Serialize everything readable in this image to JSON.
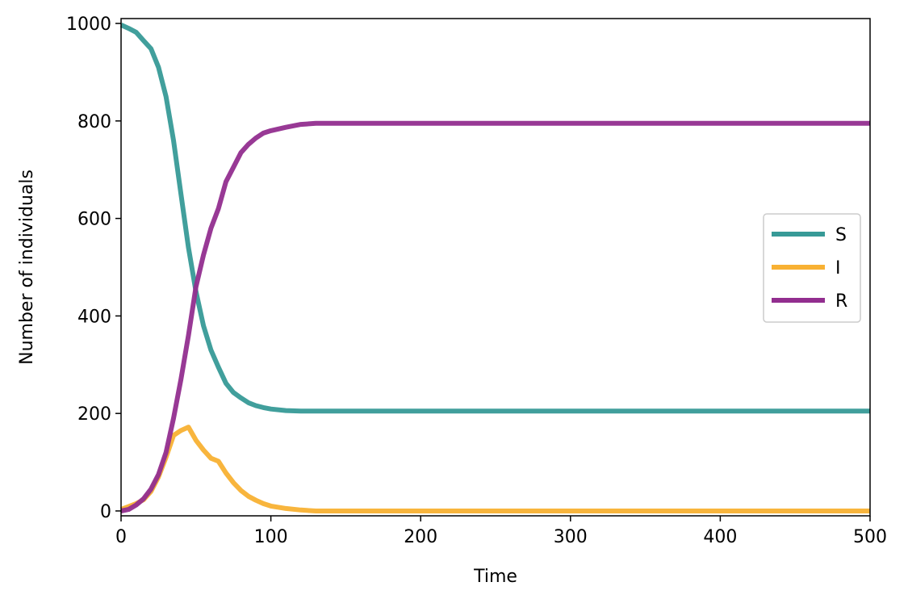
{
  "chart_data": {
    "type": "line",
    "title": "",
    "xlabel": "Time",
    "ylabel": "Number of individuals",
    "xlim": [
      0,
      500
    ],
    "ylim": [
      -10,
      1010
    ],
    "xticks": [
      "0",
      "100",
      "200",
      "300",
      "400",
      "500"
    ],
    "yticks": [
      "0",
      "200",
      "400",
      "600",
      "800",
      "1000"
    ],
    "grid": false,
    "legend_position": "center-right",
    "series": [
      {
        "name": "S",
        "color": "#379a97",
        "points": [
          [
            0,
            997
          ],
          [
            5,
            990
          ],
          [
            10,
            982
          ],
          [
            15,
            965
          ],
          [
            20,
            948
          ],
          [
            25,
            910
          ],
          [
            30,
            850
          ],
          [
            35,
            760
          ],
          [
            40,
            650
          ],
          [
            45,
            540
          ],
          [
            50,
            450
          ],
          [
            55,
            380
          ],
          [
            60,
            330
          ],
          [
            65,
            295
          ],
          [
            70,
            262
          ],
          [
            75,
            243
          ],
          [
            80,
            232
          ],
          [
            85,
            222
          ],
          [
            90,
            216
          ],
          [
            95,
            212
          ],
          [
            100,
            209
          ],
          [
            110,
            206
          ],
          [
            120,
            205
          ],
          [
            500,
            205
          ]
        ]
      },
      {
        "name": "I",
        "color": "#f8b133",
        "points": [
          [
            0,
            3
          ],
          [
            5,
            9
          ],
          [
            10,
            15
          ],
          [
            15,
            23
          ],
          [
            20,
            40
          ],
          [
            25,
            70
          ],
          [
            30,
            110
          ],
          [
            35,
            155
          ],
          [
            40,
            165
          ],
          [
            45,
            172
          ],
          [
            50,
            145
          ],
          [
            55,
            125
          ],
          [
            60,
            108
          ],
          [
            65,
            102
          ],
          [
            70,
            78
          ],
          [
            75,
            58
          ],
          [
            80,
            42
          ],
          [
            85,
            30
          ],
          [
            90,
            22
          ],
          [
            95,
            15
          ],
          [
            100,
            10
          ],
          [
            110,
            5
          ],
          [
            120,
            2
          ],
          [
            130,
            0
          ],
          [
            500,
            0
          ]
        ]
      },
      {
        "name": "R",
        "color": "#922e8f",
        "points": [
          [
            0,
            0
          ],
          [
            5,
            3
          ],
          [
            10,
            12
          ],
          [
            15,
            25
          ],
          [
            20,
            45
          ],
          [
            25,
            75
          ],
          [
            30,
            120
          ],
          [
            35,
            190
          ],
          [
            40,
            270
          ],
          [
            45,
            360
          ],
          [
            50,
            460
          ],
          [
            55,
            525
          ],
          [
            60,
            580
          ],
          [
            65,
            620
          ],
          [
            70,
            675
          ],
          [
            75,
            705
          ],
          [
            80,
            735
          ],
          [
            85,
            752
          ],
          [
            90,
            765
          ],
          [
            95,
            775
          ],
          [
            100,
            780
          ],
          [
            110,
            787
          ],
          [
            120,
            793
          ],
          [
            130,
            795
          ],
          [
            500,
            795
          ]
        ]
      }
    ]
  }
}
